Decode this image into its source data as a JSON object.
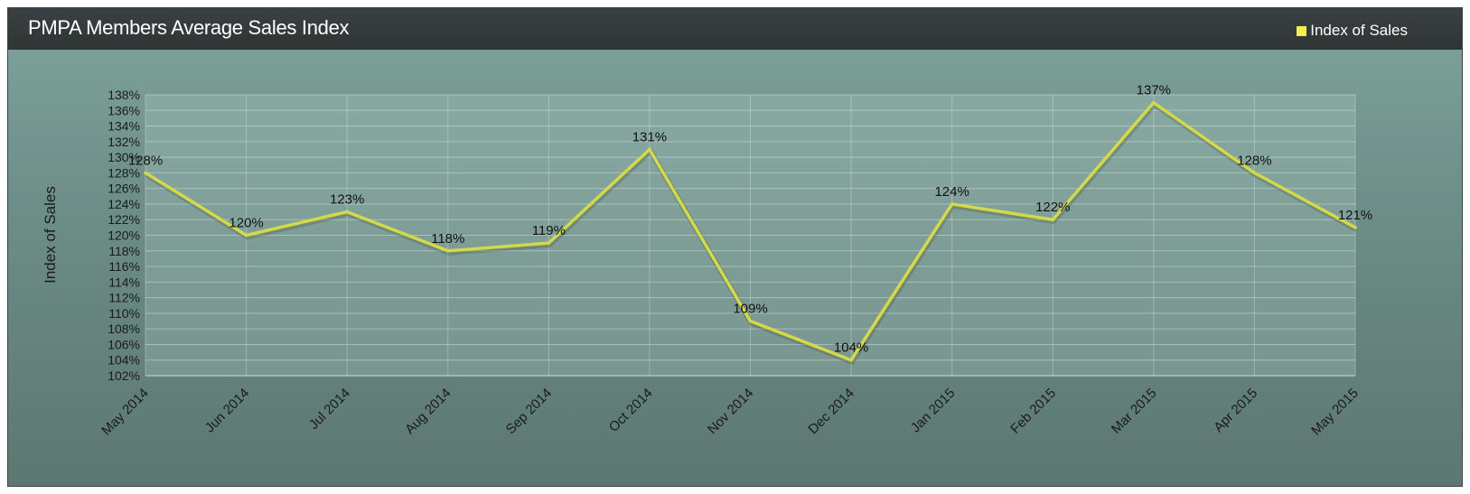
{
  "colors": {
    "line": "#d4d94a",
    "title_bar": "#2f3435",
    "legend_swatch": "#f0f04a"
  },
  "chart_data": {
    "type": "line",
    "title": "PMPA Members Average Sales Index",
    "xlabel": "",
    "ylabel": "Index of Sales",
    "categories": [
      "May 2014",
      "Jun 2014",
      "Jul 2014",
      "Aug 2014",
      "Sep 2014",
      "Oct 2014",
      "Nov 2014",
      "Dec 2014",
      "Jan 2015",
      "Feb 2015",
      "Mar 2015",
      "Apr 2015",
      "May 2015"
    ],
    "series": [
      {
        "name": "Index of Sales",
        "values": [
          128,
          120,
          123,
          118,
          119,
          131,
          109,
          104,
          124,
          122,
          137,
          128,
          121
        ],
        "labels": [
          "128%",
          "120%",
          "123%",
          "118%",
          "119%",
          "131%",
          "109%",
          "104%",
          "124%",
          "122%",
          "137%",
          "128%",
          "121%"
        ]
      }
    ],
    "ylim": [
      102,
      138
    ],
    "yticks": [
      "102%",
      "104%",
      "106%",
      "108%",
      "110%",
      "112%",
      "114%",
      "116%",
      "118%",
      "120%",
      "122%",
      "124%",
      "126%",
      "128%",
      "130%",
      "132%",
      "134%",
      "136%",
      "138%"
    ],
    "grid": true,
    "legend_position": "top-right"
  }
}
